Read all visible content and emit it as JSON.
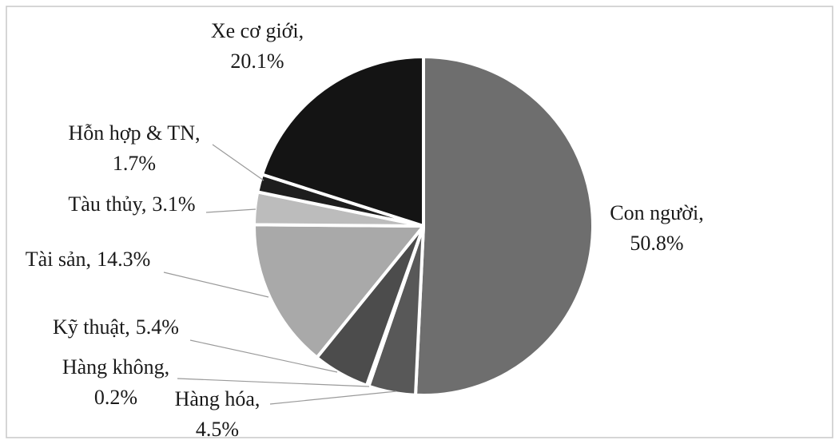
{
  "chart_data": {
    "type": "pie",
    "categories": [
      "Con người,",
      "Hàng hóa,",
      "Hàng không,",
      "Kỹ thuật,",
      "Tài sản,",
      "Tàu thủy,",
      "Hỗn hợp & TN,",
      "Xe cơ giới,"
    ],
    "values": [
      50.8,
      4.5,
      0.2,
      5.4,
      14.3,
      3.1,
      1.7,
      20.1
    ],
    "value_labels": [
      "50.8%",
      "4.5%",
      "0.2%",
      "5.4%",
      "14.3%",
      "3.1%",
      "1.7%",
      "20.1%"
    ],
    "colors": [
      "#6e6e6e",
      "#585858",
      "#8a8a8a",
      "#4c4c4c",
      "#a9a9a9",
      "#bcbcbc",
      "#1e1e1e",
      "#141414"
    ]
  }
}
